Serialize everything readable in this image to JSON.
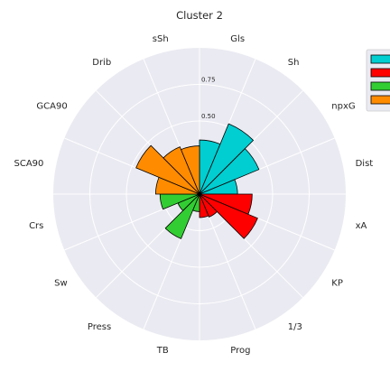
{
  "chart_data": {
    "type": "polar-bar",
    "title": "Cluster 2",
    "categories": [
      "Gls",
      "Sh",
      "npxG",
      "Dist",
      "xA",
      "KP",
      "1/3",
      "Prog",
      "TB",
      "Press",
      "Sw",
      "Crs",
      "SCA90",
      "GCA90",
      "Drib",
      "sSh"
    ],
    "radial_ticks": [
      "0.50",
      "0.75"
    ],
    "rlim": [
      0,
      1
    ],
    "grid": true,
    "legend": {
      "placement": "top-right"
    },
    "series": [
      {
        "color": "#00CED1",
        "values": [
          0.37,
          0.52,
          0.44,
          0.26,
          0,
          0,
          0,
          0,
          0,
          0,
          0,
          0,
          0,
          0,
          0,
          0
        ]
      },
      {
        "color": "#FF0000",
        "values": [
          0,
          0,
          0,
          0,
          0.36,
          0.43,
          0.17,
          0.16,
          0,
          0,
          0,
          0,
          0,
          0,
          0,
          0
        ]
      },
      {
        "color": "#32CD32",
        "values": [
          0,
          0,
          0,
          0,
          0,
          0,
          0,
          0,
          0.12,
          0.33,
          0.16,
          0.27,
          0,
          0,
          0,
          0
        ]
      },
      {
        "color": "#FF8C00",
        "values": [
          0,
          0,
          0,
          0,
          0,
          0,
          0,
          0,
          0,
          0,
          0,
          0,
          0.3,
          0.47,
          0.35,
          0.33
        ]
      }
    ]
  }
}
